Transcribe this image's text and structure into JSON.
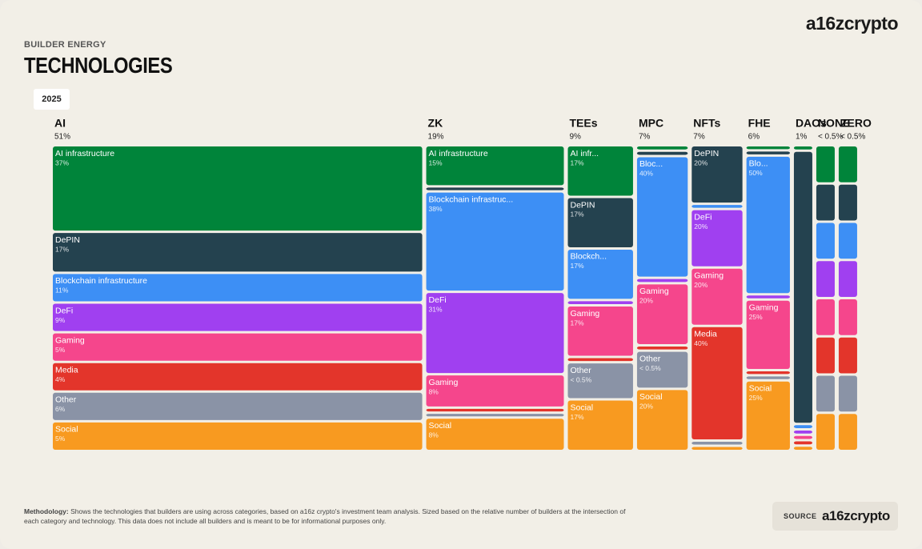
{
  "header": {
    "kicker": "BUILDER ENERGY",
    "title": "TECHNOLOGIES",
    "year": "2025",
    "logo": "a16zcrypto"
  },
  "chart_data": {
    "type": "mosaic",
    "columns": [
      {
        "name": "AI",
        "value": 51,
        "value_label": "51%",
        "segments": [
          {
            "name": "AI infrastructure",
            "value": 37,
            "value_label": "37%",
            "color": "#00843a"
          },
          {
            "name": "DePIN",
            "value": 17,
            "value_label": "17%",
            "color": "#24424f"
          },
          {
            "name": "Blockchain infrastructure",
            "value": 11,
            "value_label": "11%",
            "color": "#3d8ff5"
          },
          {
            "name": "DeFi",
            "value": 9,
            "value_label": "9%",
            "color": "#a040f0"
          },
          {
            "name": "Gaming",
            "value": 5,
            "value_label": "5%",
            "color": "#f5468c"
          },
          {
            "name": "Media",
            "value": 4,
            "value_label": "4%",
            "color": "#e3352b"
          },
          {
            "name": "Other",
            "value": 6,
            "value_label": "6%",
            "color": "#8a93a6"
          },
          {
            "name": "Social",
            "value": 5,
            "value_label": "5%",
            "color": "#f89a20"
          }
        ]
      },
      {
        "name": "ZK",
        "value": 19,
        "value_label": "19%",
        "segments": [
          {
            "name": "AI infrastructure",
            "value": 15,
            "value_label": "15%",
            "color": "#00843a"
          },
          {
            "name": null,
            "value": 1,
            "color": "#24424f"
          },
          {
            "name": "Blockchain infrastruc...",
            "value": 38,
            "value_label": "38%",
            "color": "#3d8ff5"
          },
          {
            "name": "DeFi",
            "value": 31,
            "value_label": "31%",
            "color": "#a040f0"
          },
          {
            "name": "Gaming",
            "value": 8,
            "value_label": "8%",
            "color": "#f5468c"
          },
          {
            "name": null,
            "value": 1,
            "color": "#e3352b"
          },
          {
            "name": null,
            "value": 1,
            "color": "#8a93a6"
          },
          {
            "name": "Social",
            "value": 8,
            "value_label": "8%",
            "color": "#f89a20"
          }
        ]
      },
      {
        "name": "TEEs",
        "value": 9,
        "value_label": "9%",
        "segments": [
          {
            "name": "AI infr...",
            "value": 17,
            "value_label": "17%",
            "color": "#00843a"
          },
          {
            "name": "DePIN",
            "value": 17,
            "value_label": "17%",
            "color": "#24424f"
          },
          {
            "name": "Blockch...",
            "value": 17,
            "value_label": "17%",
            "color": "#3d8ff5"
          },
          {
            "name": null,
            "value": 1,
            "color": "#a040f0"
          },
          {
            "name": "Gaming",
            "value": 17,
            "value_label": "17%",
            "color": "#f5468c"
          },
          {
            "name": null,
            "value": 1,
            "color": "#e3352b"
          },
          {
            "name": "Other",
            "value": 0.4,
            "value_label": "< 0.5%",
            "color": "#8a93a6"
          },
          {
            "name": "Social",
            "value": 17,
            "value_label": "17%",
            "color": "#f89a20"
          }
        ]
      },
      {
        "name": "MPC",
        "value": 7,
        "value_label": "7%",
        "segments": [
          {
            "name": null,
            "value": 1,
            "color": "#00843a"
          },
          {
            "name": null,
            "value": 1,
            "color": "#24424f"
          },
          {
            "name": "Bloc...",
            "value": 40,
            "value_label": "40%",
            "color": "#3d8ff5"
          },
          {
            "name": null,
            "value": 1,
            "color": "#a040f0"
          },
          {
            "name": "Gaming",
            "value": 20,
            "value_label": "20%",
            "color": "#f5468c"
          },
          {
            "name": null,
            "value": 1,
            "color": "#e3352b"
          },
          {
            "name": "Other",
            "value": 0.4,
            "value_label": "< 0.5%",
            "color": "#8a93a6"
          },
          {
            "name": "Social",
            "value": 20,
            "value_label": "20%",
            "color": "#f89a20"
          }
        ]
      },
      {
        "name": "NFTs",
        "value": 7,
        "value_label": "7%",
        "segments": [
          {
            "name": "DePIN",
            "value": 20,
            "value_label": "20%",
            "color": "#24424f"
          },
          {
            "name": null,
            "value": 1,
            "color": "#3d8ff5"
          },
          {
            "name": "DeFi",
            "value": 20,
            "value_label": "20%",
            "color": "#a040f0"
          },
          {
            "name": "Gaming",
            "value": 20,
            "value_label": "20%",
            "color": "#f5468c"
          },
          {
            "name": "Media",
            "value": 40,
            "value_label": "40%",
            "color": "#e3352b"
          },
          {
            "name": null,
            "value": 1,
            "color": "#8a93a6"
          },
          {
            "name": null,
            "value": 1,
            "color": "#f89a20"
          }
        ]
      },
      {
        "name": "FHE",
        "value": 6,
        "value_label": "6%",
        "segments": [
          {
            "name": null,
            "value": 1,
            "color": "#00843a"
          },
          {
            "name": null,
            "value": 1,
            "color": "#24424f"
          },
          {
            "name": "Blo...",
            "value": 50,
            "value_label": "50%",
            "color": "#3d8ff5"
          },
          {
            "name": null,
            "value": 1,
            "color": "#a040f0"
          },
          {
            "name": "Gaming",
            "value": 25,
            "value_label": "25%",
            "color": "#f5468c"
          },
          {
            "name": null,
            "value": 1,
            "color": "#e3352b"
          },
          {
            "name": null,
            "value": 1,
            "color": "#8a93a6"
          },
          {
            "name": "Social",
            "value": 25,
            "value_label": "25%",
            "color": "#f89a20"
          }
        ]
      },
      {
        "name": "DAOs",
        "value": 1,
        "value_label": "1%",
        "segments": [
          {
            "name": null,
            "value": 1,
            "color": "#00843a"
          },
          {
            "name": null,
            "value": 90,
            "color": "#24424f"
          },
          {
            "name": null,
            "value": 1,
            "color": "#3d8ff5"
          },
          {
            "name": null,
            "value": 1,
            "color": "#a040f0"
          },
          {
            "name": null,
            "value": 1,
            "color": "#f5468c"
          },
          {
            "name": null,
            "value": 1,
            "color": "#e3352b"
          },
          {
            "name": null,
            "value": 1,
            "color": "#f89a20"
          }
        ]
      },
      {
        "name": "NONE",
        "value": 0.4,
        "value_label": "< 0.5%",
        "segments": [
          {
            "name": null,
            "value": 12.5,
            "color": "#00843a"
          },
          {
            "name": null,
            "value": 12.5,
            "color": "#24424f"
          },
          {
            "name": null,
            "value": 12.5,
            "color": "#3d8ff5"
          },
          {
            "name": null,
            "value": 12.5,
            "color": "#a040f0"
          },
          {
            "name": null,
            "value": 12.5,
            "color": "#f5468c"
          },
          {
            "name": null,
            "value": 12.5,
            "color": "#e3352b"
          },
          {
            "name": null,
            "value": 12.5,
            "color": "#8a93a6"
          },
          {
            "name": null,
            "value": 12.5,
            "color": "#f89a20"
          }
        ]
      },
      {
        "name": "ZERO",
        "value": 0.4,
        "value_label": "< 0.5%",
        "segments": [
          {
            "name": null,
            "value": 12.5,
            "color": "#00843a"
          },
          {
            "name": null,
            "value": 12.5,
            "color": "#24424f"
          },
          {
            "name": null,
            "value": 12.5,
            "color": "#3d8ff5"
          },
          {
            "name": null,
            "value": 12.5,
            "color": "#a040f0"
          },
          {
            "name": null,
            "value": 12.5,
            "color": "#f5468c"
          },
          {
            "name": null,
            "value": 12.5,
            "color": "#e3352b"
          },
          {
            "name": null,
            "value": 12.5,
            "color": "#8a93a6"
          },
          {
            "name": null,
            "value": 12.5,
            "color": "#f89a20"
          }
        ]
      }
    ]
  },
  "footer": {
    "methodology_label": "Methodology:",
    "methodology": "Shows the technologies that builders are using across categories, based on a16z crypto's investment team analysis. Sized based on the relative number of builders at the intersection of each category and technology. This data does not include all builders and is meant to be for informational purposes only.",
    "source_label": "SOURCE",
    "source": "a16zcrypto"
  }
}
